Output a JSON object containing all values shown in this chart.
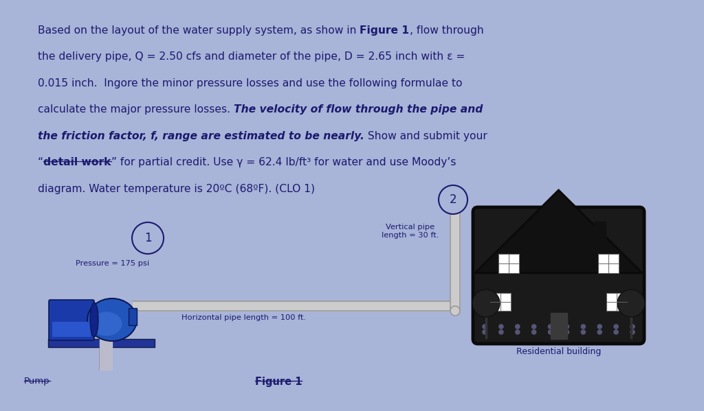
{
  "background_color": "#a8b4d8",
  "text_color": "#1a1a6e",
  "fig_label": "Figure 1",
  "pump_label": "Pump",
  "pressure_label": "Pressure = 175 psi",
  "horiz_label": "Horizontal pipe length = 100 ft.",
  "vert_label": "Vertical pipe\nlength = 30 ft.",
  "building_label": "Residential building",
  "node1_label": "1",
  "node2_label": "2"
}
